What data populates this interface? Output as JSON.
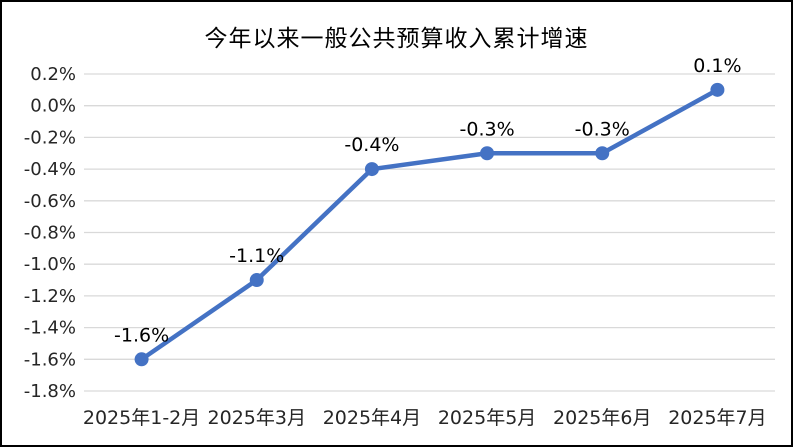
{
  "window": {
    "background": "#FFFFFF",
    "frame_border_color": "#000000"
  },
  "chart_data": {
    "type": "line",
    "title": "今年以来一般公共预算收入累计增速",
    "categories": [
      "2025年1-2月",
      "2025年3月",
      "2025年4月",
      "2025年5月",
      "2025年6月",
      "2025年7月"
    ],
    "values": [
      -1.6,
      -1.1,
      -0.4,
      -0.3,
      -0.3,
      0.1
    ],
    "point_labels": [
      "-1.6%",
      "-1.1%",
      "-0.4%",
      "-0.3%",
      "-0.3%",
      "0.1%"
    ],
    "y_ticks": [
      {
        "label": "0.2%",
        "value": 0.2
      },
      {
        "label": "0.0%",
        "value": 0.0
      },
      {
        "label": "-0.2%",
        "value": -0.2
      },
      {
        "label": "-0.4%",
        "value": -0.4
      },
      {
        "label": "-0.6%",
        "value": -0.6
      },
      {
        "label": "-0.8%",
        "value": -0.8
      },
      {
        "label": "-1.0%",
        "value": -1.0
      },
      {
        "label": "-1.2%",
        "value": -1.2
      },
      {
        "label": "-1.4%",
        "value": -1.4
      },
      {
        "label": "-1.6%",
        "value": -1.6
      },
      {
        "label": "-1.8%",
        "value": -1.8
      }
    ],
    "ylim": [
      -1.8,
      0.2
    ],
    "xlabel": "",
    "ylabel": "",
    "grid": "horizontal",
    "legend": "none",
    "marker": "circle",
    "colors": {
      "line": "#4472C4",
      "grid": "#D9D9D9",
      "axis_text": "#262626",
      "data_label": "#000000",
      "title_text": "#000000"
    }
  }
}
